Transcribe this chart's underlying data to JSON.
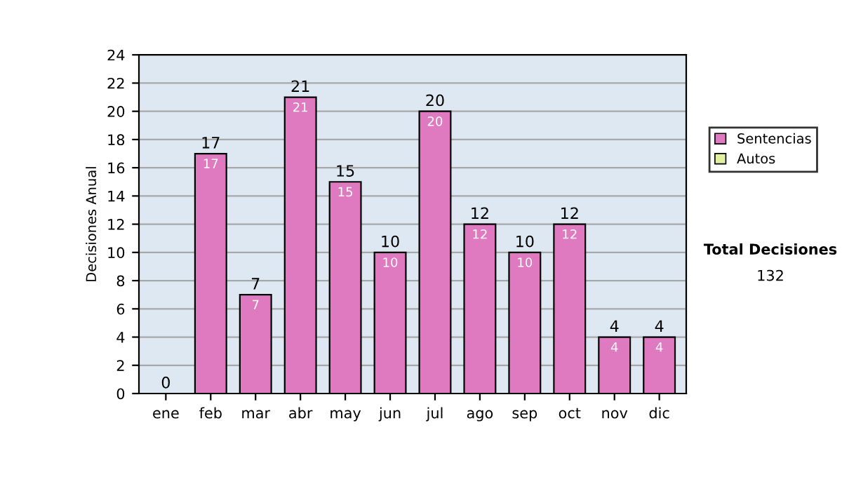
{
  "chart_data": {
    "type": "bar",
    "stacked": true,
    "ylabel": "Decisiones Anual",
    "categories": [
      "ene",
      "feb",
      "mar",
      "abr",
      "may",
      "jun",
      "jul",
      "ago",
      "sep",
      "oct",
      "nov",
      "dic"
    ],
    "series": [
      {
        "name": "Sentencias",
        "color": "#e07ac0",
        "values": [
          0,
          17,
          7,
          21,
          15,
          10,
          20,
          12,
          10,
          12,
          4,
          4
        ],
        "value_labels": [
          null,
          "17",
          "7",
          "21",
          "15",
          "10",
          "20",
          "12",
          "10",
          "12",
          "4",
          "4"
        ]
      },
      {
        "name": "Autos",
        "color": "#e0f0a0",
        "values": [
          0,
          0,
          0,
          0,
          0,
          0,
          0,
          0,
          0,
          0,
          0,
          0
        ]
      }
    ],
    "totals": [
      "0",
      "17",
      "7",
      "21",
      "15",
      "10",
      "20",
      "12",
      "10",
      "12",
      "4",
      "4"
    ],
    "ylim": [
      0,
      24
    ],
    "yticks": [
      0,
      2,
      4,
      6,
      8,
      10,
      12,
      14,
      16,
      18,
      20,
      22,
      24
    ],
    "grid": "y",
    "legend": "right",
    "annotations": [
      "Total Decisiones",
      "132"
    ]
  }
}
